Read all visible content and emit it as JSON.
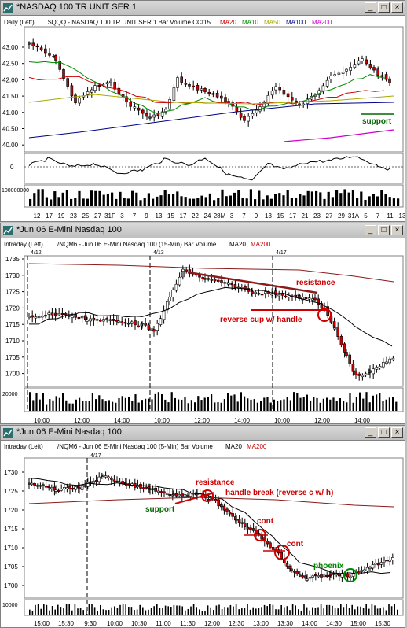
{
  "window1": {
    "title": "*NASDAQ 100 TR UNIT SER 1",
    "header": [
      {
        "text": "Daily  (Left)",
        "color": "#000000"
      },
      {
        "text": "$QQQ - NASDAQ 100 TR UNIT SER 1  Bar  Volume  CCI15",
        "color": "#000000"
      },
      {
        "text": "MA20",
        "color": "#cc0000"
      },
      {
        "text": "MA10",
        "color": "#008800"
      },
      {
        "text": "MA50",
        "color": "#aaaa00"
      },
      {
        "text": "MA100",
        "color": "#000088"
      },
      {
        "text": "MA200",
        "color": "#cc00cc"
      }
    ],
    "price_ticks": [
      "43.00",
      "42.50",
      "42.00",
      "41.50",
      "41.00",
      "40.50",
      "40.00"
    ],
    "cci_tick": "0",
    "volume_tick": "100000000",
    "date_ticks": [
      "12",
      "17",
      "19",
      "23",
      "25",
      "27",
      "31F",
      "3",
      "7",
      "9",
      "13",
      "15",
      "17",
      "22",
      "24",
      "28M",
      "3",
      "7",
      "9",
      "13",
      "15",
      "17",
      "21",
      "23",
      "27",
      "29",
      "31A",
      "5",
      "7",
      "11",
      "13"
    ],
    "annotations": [
      {
        "text": "support",
        "color": "#006600"
      }
    ]
  },
  "window2": {
    "title": "*Jun 06  E-Mini Nasdaq 100",
    "header": [
      {
        "text": "Intraday  (Left)",
        "color": "#000000"
      },
      {
        "text": "/NQM6 - Jun 06  E-Mini Nasdaq 100 (15-Min)  Bar  Volume",
        "color": "#000000"
      },
      {
        "text": "MA20",
        "color": "#000000"
      },
      {
        "text": "MA200",
        "color": "#cc0000"
      }
    ],
    "date_marks": [
      "4/12",
      "4/13",
      "4/17"
    ],
    "price_ticks": [
      "1735",
      "1730",
      "1725",
      "1720",
      "1715",
      "1710",
      "1705",
      "1700"
    ],
    "volume_tick": "20000",
    "time_ticks": [
      "10:00",
      "12:00",
      "14:00",
      "10:00",
      "12:00",
      "14:00",
      "10:00",
      "12:00",
      "14:00"
    ],
    "annotations": [
      {
        "text": "resistance",
        "color": "#cc0000"
      },
      {
        "text": "reverse cup w/ handle",
        "color": "#cc0000"
      }
    ]
  },
  "window3": {
    "title": "*Jun 06  E-Mini Nasdaq 100",
    "header": [
      {
        "text": "Intraday  (Left)",
        "color": "#000000"
      },
      {
        "text": "/NQM6 - Jun 06  E-Mini Nasdaq 100 (5-Min)  Bar  Volume",
        "color": "#000000"
      },
      {
        "text": "MA20",
        "color": "#000000"
      },
      {
        "text": "MA200",
        "color": "#cc0000"
      }
    ],
    "date_marks": [
      "4/17"
    ],
    "price_ticks": [
      "1730",
      "1725",
      "1720",
      "1715",
      "1710",
      "1705",
      "1700"
    ],
    "volume_tick": "10000",
    "time_ticks": [
      "15:00",
      "15:30",
      "9:30",
      "10:00",
      "10:30",
      "11:00",
      "11:30",
      "12:00",
      "12:30",
      "13:00",
      "13:30",
      "14:00",
      "14:30",
      "15:00",
      "15:30"
    ],
    "annotations": [
      {
        "text": "resistance",
        "color": "#cc0000"
      },
      {
        "text": "handle break (reverse c w/ h)",
        "color": "#cc0000"
      },
      {
        "text": "support",
        "color": "#006600"
      },
      {
        "text": "cont",
        "color": "#cc0000"
      },
      {
        "text": "cont",
        "color": "#cc0000"
      },
      {
        "text": "phoenix",
        "color": "#008800"
      }
    ]
  },
  "buttons": {
    "minimize": "_",
    "maximize": "□",
    "close": "×"
  }
}
